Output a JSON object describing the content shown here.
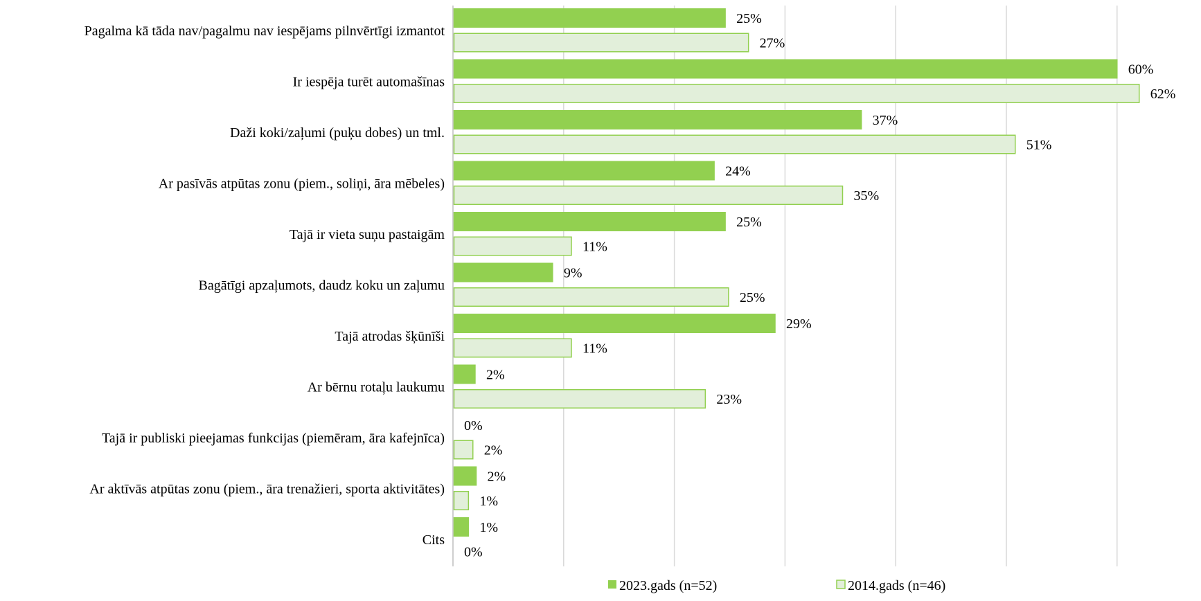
{
  "chart_data": {
    "type": "bar",
    "orientation": "horizontal",
    "categories": [
      "Pagalma kā tāda nav/pagalmu nav iespējams pilnvērtīgi izmantot",
      "Ir iespēja turēt automašīnas",
      "Daži koki/zaļumi (puķu dobes) un tml.",
      "Ar pasīvās atpūtas zonu (piem., soliņi, āra mēbeles)",
      "Tajā ir vieta suņu pastaigām",
      "Bagātīgi apzaļumots, daudz koku un zaļumu",
      "Tajā atrodas šķūnīši",
      "Ar bērnu rotaļu laukumu",
      "Tajā ir publiski pieejamas funkcijas (piemēram, āra kafejnīca)",
      "Ar aktīvās atpūtas zonu (piem., āra trenažieri, sporta aktivitātes)",
      "Cits"
    ],
    "series": [
      {
        "name": "2023.gads (n=52)",
        "color": "#92d050",
        "values": [
          25,
          60,
          37,
          24,
          25,
          9,
          29,
          2,
          0,
          2,
          1
        ],
        "display_values": [
          24.6,
          60.0,
          36.9,
          23.6,
          24.6,
          9.0,
          29.1,
          2.0,
          0.0,
          2.1,
          1.4
        ]
      },
      {
        "name": "2014.gads (n=46)",
        "color": "#e2efda",
        "stroke": "#92d050",
        "values": [
          27,
          62,
          51,
          35,
          11,
          25,
          11,
          23,
          2,
          1,
          0
        ],
        "display_values": [
          26.7,
          62.0,
          50.8,
          35.2,
          10.7,
          24.9,
          10.7,
          22.8,
          1.8,
          1.4,
          0.0
        ]
      }
    ],
    "value_suffix": "%",
    "xlim": [
      0,
      70
    ],
    "grid_step": 10,
    "grid": true,
    "gridline_color": "#d9d9d9",
    "axis_color": "#bfbfbf",
    "show_x_tick_labels": false,
    "legend_position": "bottom"
  }
}
